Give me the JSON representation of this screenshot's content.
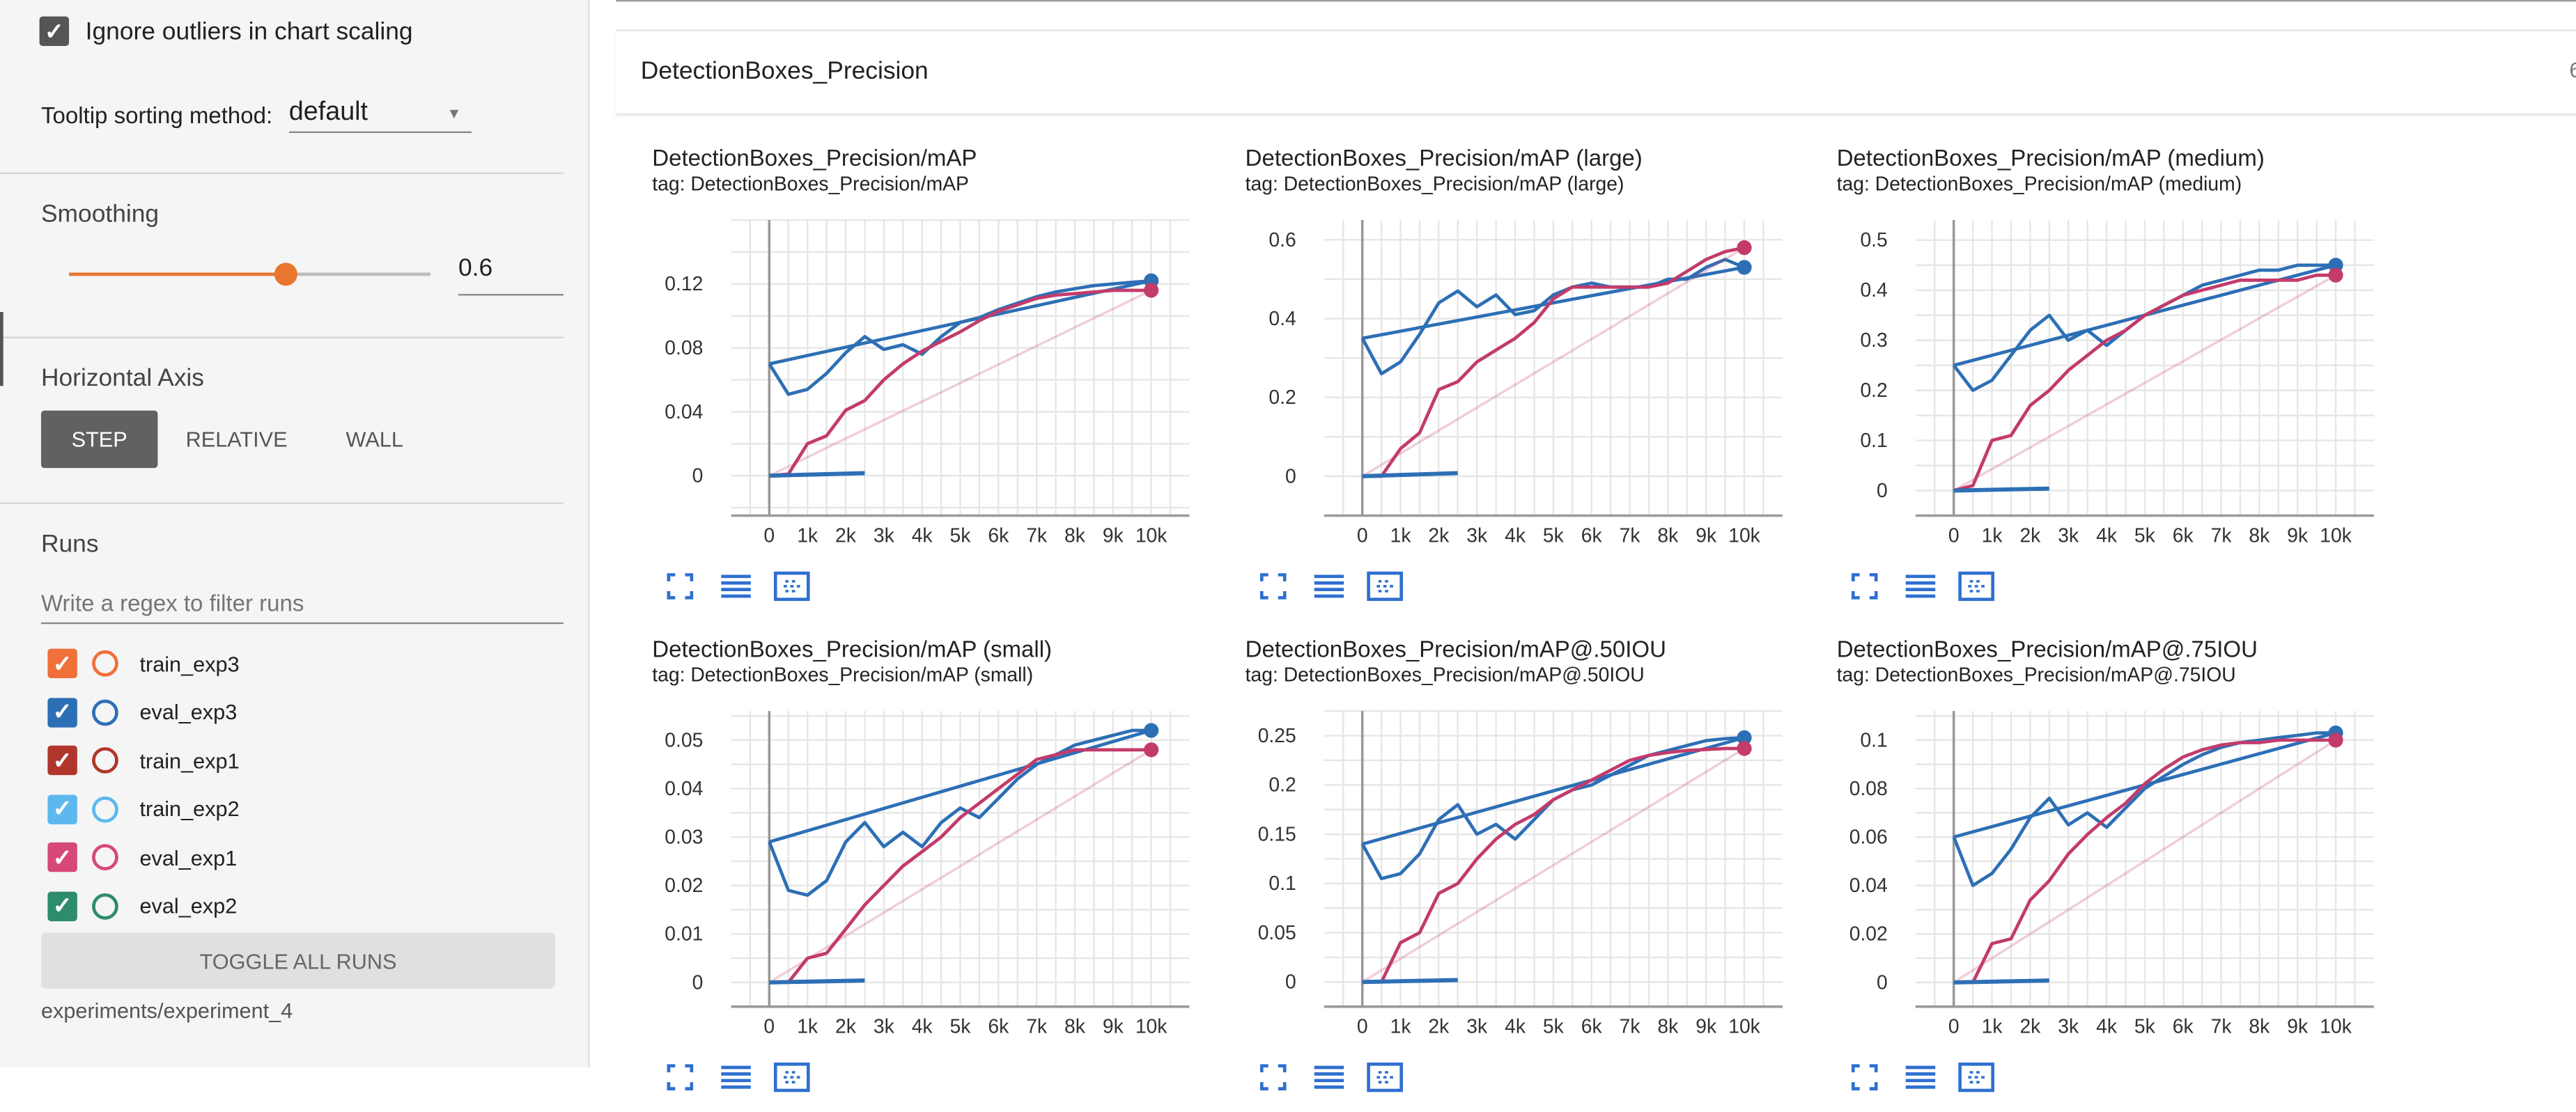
{
  "sidebar": {
    "ignore_outliers_label": "Ignore outliers in chart scaling",
    "ignore_outliers_checked": true,
    "tooltip_label": "Tooltip sorting method:",
    "tooltip_value": "default",
    "smoothing_title": "Smoothing",
    "smoothing_value": "0.6",
    "smoothing_fraction": 0.6,
    "horizontal_axis_title": "Horizontal Axis",
    "axis_options": [
      "STEP",
      "RELATIVE",
      "WALL"
    ],
    "axis_selected": "STEP",
    "runs_title": "Runs",
    "runs_filter_placeholder": "Write a regex to filter runs",
    "runs": [
      {
        "name": "train_exp3",
        "color": "#f0703a",
        "checked": true
      },
      {
        "name": "eval_exp3",
        "color": "#2d6fb5",
        "checked": true
      },
      {
        "name": "train_exp1",
        "color": "#b0362c",
        "checked": true
      },
      {
        "name": "train_exp2",
        "color": "#5db8f0",
        "checked": true
      },
      {
        "name": "eval_exp1",
        "color": "#d64878",
        "checked": true
      },
      {
        "name": "eval_exp2",
        "color": "#2c8c6c",
        "checked": true
      }
    ],
    "toggle_all_label": "TOGGLE ALL RUNS",
    "log_dir": "experiments/experiment_4"
  },
  "main": {
    "group_title": "DetectionBoxes_Precision",
    "group_count": "6"
  },
  "accent_color": "#e8762e",
  "chart_data": [
    {
      "type": "line",
      "title": "DetectionBoxes_Precision/mAP",
      "tag": "tag: DetectionBoxes_Precision/mAP",
      "x_ticks": [
        "0",
        "1k",
        "2k",
        "3k",
        "4k",
        "5k",
        "6k",
        "7k",
        "8k",
        "9k",
        "10k"
      ],
      "y_ticks": [
        "0",
        "0.04",
        "0.08",
        "0.12"
      ],
      "ylim": [
        -0.025,
        0.16
      ],
      "series": [
        {
          "name": "eval_exp3",
          "color": "#2d6fb5",
          "x": [
            0,
            500,
            1000,
            1500,
            2000,
            2500,
            3000,
            3500,
            4000,
            4500,
            5000,
            5500,
            6000,
            6500,
            7000,
            7500,
            8000,
            8500,
            9000,
            9500,
            10000
          ],
          "y": [
            0.07,
            0.051,
            0.054,
            0.064,
            0.077,
            0.087,
            0.079,
            0.082,
            0.076,
            0.087,
            0.096,
            0.099,
            0.104,
            0.108,
            0.112,
            0.115,
            0.117,
            0.119,
            0.12,
            0.121,
            0.122
          ]
        },
        {
          "name": "eval_exp1",
          "color": "#c23b6b",
          "x": [
            0,
            500,
            1000,
            1500,
            2000,
            2500,
            3000,
            3500,
            4000,
            4500,
            5000,
            5500,
            6000,
            6500,
            7000,
            7500,
            8000,
            8500,
            9000,
            9500,
            10000
          ],
          "y": [
            0.0,
            0.001,
            0.02,
            0.025,
            0.041,
            0.047,
            0.06,
            0.07,
            0.078,
            0.084,
            0.09,
            0.097,
            0.103,
            0.107,
            0.111,
            0.113,
            0.114,
            0.115,
            0.116,
            0.116,
            0.116
          ]
        }
      ]
    },
    {
      "type": "line",
      "title": "DetectionBoxes_Precision/mAP (large)",
      "tag": "tag: DetectionBoxes_Precision/mAP (large)",
      "x_ticks": [
        "0",
        "1k",
        "2k",
        "3k",
        "4k",
        "5k",
        "6k",
        "7k",
        "8k",
        "9k",
        "10k"
      ],
      "y_ticks": [
        "0",
        "0.2",
        "0.4",
        "0.6"
      ],
      "ylim": [
        -0.1,
        0.65
      ],
      "series": [
        {
          "name": "eval_exp3",
          "color": "#2d6fb5",
          "x": [
            0,
            500,
            1000,
            1500,
            2000,
            2500,
            3000,
            3500,
            4000,
            4500,
            5000,
            5500,
            6000,
            6500,
            7000,
            7500,
            8000,
            8500,
            9000,
            9500,
            10000
          ],
          "y": [
            0.35,
            0.26,
            0.29,
            0.36,
            0.44,
            0.47,
            0.43,
            0.46,
            0.41,
            0.42,
            0.46,
            0.48,
            0.49,
            0.48,
            0.48,
            0.48,
            0.5,
            0.5,
            0.53,
            0.55,
            0.53
          ]
        },
        {
          "name": "eval_exp1",
          "color": "#c23b6b",
          "x": [
            0,
            500,
            1000,
            1500,
            2000,
            2500,
            3000,
            3500,
            4000,
            4500,
            5000,
            5500,
            6000,
            6500,
            7000,
            7500,
            8000,
            8500,
            9000,
            9500,
            10000
          ],
          "y": [
            0.0,
            0.0,
            0.07,
            0.11,
            0.22,
            0.24,
            0.29,
            0.32,
            0.35,
            0.39,
            0.45,
            0.48,
            0.48,
            0.48,
            0.48,
            0.48,
            0.49,
            0.52,
            0.55,
            0.57,
            0.58
          ]
        }
      ]
    },
    {
      "type": "line",
      "title": "DetectionBoxes_Precision/mAP (medium)",
      "tag": "tag: DetectionBoxes_Precision/mAP (medium)",
      "x_ticks": [
        "0",
        "1k",
        "2k",
        "3k",
        "4k",
        "5k",
        "6k",
        "7k",
        "8k",
        "9k",
        "10k"
      ],
      "y_ticks": [
        "0",
        "0.1",
        "0.2",
        "0.3",
        "0.4",
        "0.5"
      ],
      "ylim": [
        -0.05,
        0.54
      ],
      "series": [
        {
          "name": "eval_exp3",
          "color": "#2d6fb5",
          "x": [
            0,
            500,
            1000,
            1500,
            2000,
            2500,
            3000,
            3500,
            4000,
            4500,
            5000,
            5500,
            6000,
            6500,
            7000,
            7500,
            8000,
            8500,
            9000,
            9500,
            10000
          ],
          "y": [
            0.25,
            0.2,
            0.22,
            0.27,
            0.32,
            0.35,
            0.3,
            0.32,
            0.29,
            0.32,
            0.35,
            0.37,
            0.39,
            0.41,
            0.42,
            0.43,
            0.44,
            0.44,
            0.45,
            0.45,
            0.45
          ]
        },
        {
          "name": "eval_exp1",
          "color": "#c23b6b",
          "x": [
            0,
            500,
            1000,
            1500,
            2000,
            2500,
            3000,
            3500,
            4000,
            4500,
            5000,
            5500,
            6000,
            6500,
            7000,
            7500,
            8000,
            8500,
            9000,
            9500,
            10000
          ],
          "y": [
            0.0,
            0.01,
            0.1,
            0.11,
            0.17,
            0.2,
            0.24,
            0.27,
            0.3,
            0.32,
            0.35,
            0.37,
            0.39,
            0.4,
            0.41,
            0.42,
            0.42,
            0.42,
            0.42,
            0.43,
            0.43
          ]
        }
      ]
    },
    {
      "type": "line",
      "title": "DetectionBoxes_Precision/mAP (small)",
      "tag": "tag: DetectionBoxes_Precision/mAP (small)",
      "x_ticks": [
        "0",
        "1k",
        "2k",
        "3k",
        "4k",
        "5k",
        "6k",
        "7k",
        "8k",
        "9k",
        "10k"
      ],
      "y_ticks": [
        "0",
        "0.01",
        "0.02",
        "0.03",
        "0.04",
        "0.05"
      ],
      "ylim": [
        -0.005,
        0.056
      ],
      "series": [
        {
          "name": "eval_exp3",
          "color": "#2d6fb5",
          "x": [
            0,
            500,
            1000,
            1500,
            2000,
            2500,
            3000,
            3500,
            4000,
            4500,
            5000,
            5500,
            6000,
            6500,
            7000,
            7500,
            8000,
            8500,
            9000,
            9500,
            10000
          ],
          "y": [
            0.029,
            0.019,
            0.018,
            0.021,
            0.029,
            0.033,
            0.028,
            0.031,
            0.028,
            0.033,
            0.036,
            0.034,
            0.038,
            0.042,
            0.045,
            0.047,
            0.049,
            0.05,
            0.051,
            0.052,
            0.052
          ]
        },
        {
          "name": "eval_exp1",
          "color": "#c23b6b",
          "x": [
            0,
            500,
            1000,
            1500,
            2000,
            2500,
            3000,
            3500,
            4000,
            4500,
            5000,
            5500,
            6000,
            6500,
            7000,
            7500,
            8000,
            8500,
            9000,
            9500,
            10000
          ],
          "y": [
            0.0,
            0.0,
            0.005,
            0.006,
            0.011,
            0.016,
            0.02,
            0.024,
            0.027,
            0.03,
            0.034,
            0.037,
            0.04,
            0.043,
            0.046,
            0.047,
            0.048,
            0.048,
            0.048,
            0.048,
            0.048
          ]
        }
      ]
    },
    {
      "type": "line",
      "title": "DetectionBoxes_Precision/mAP@.50IOU",
      "tag": "tag: DetectionBoxes_Precision/mAP@.50IOU",
      "x_ticks": [
        "0",
        "1k",
        "2k",
        "3k",
        "4k",
        "5k",
        "6k",
        "7k",
        "8k",
        "9k",
        "10k"
      ],
      "y_ticks": [
        "0",
        "0.05",
        "0.1",
        "0.15",
        "0.2",
        "0.25"
      ],
      "ylim": [
        -0.025,
        0.275
      ],
      "series": [
        {
          "name": "eval_exp3",
          "color": "#2d6fb5",
          "x": [
            0,
            500,
            1000,
            1500,
            2000,
            2500,
            3000,
            3500,
            4000,
            4500,
            5000,
            5500,
            6000,
            6500,
            7000,
            7500,
            8000,
            8500,
            9000,
            9500,
            10000
          ],
          "y": [
            0.14,
            0.105,
            0.11,
            0.13,
            0.165,
            0.18,
            0.15,
            0.16,
            0.145,
            0.165,
            0.185,
            0.195,
            0.2,
            0.21,
            0.22,
            0.23,
            0.235,
            0.24,
            0.245,
            0.247,
            0.248
          ]
        },
        {
          "name": "eval_exp1",
          "color": "#c23b6b",
          "x": [
            0,
            500,
            1000,
            1500,
            2000,
            2500,
            3000,
            3500,
            4000,
            4500,
            5000,
            5500,
            6000,
            6500,
            7000,
            7500,
            8000,
            8500,
            9000,
            9500,
            10000
          ],
          "y": [
            0.0,
            0.0,
            0.04,
            0.05,
            0.09,
            0.1,
            0.125,
            0.145,
            0.16,
            0.17,
            0.185,
            0.195,
            0.205,
            0.215,
            0.225,
            0.23,
            0.233,
            0.235,
            0.236,
            0.237,
            0.237
          ]
        }
      ]
    },
    {
      "type": "line",
      "title": "DetectionBoxes_Precision/mAP@.75IOU",
      "tag": "tag: DetectionBoxes_Precision/mAP@.75IOU",
      "x_ticks": [
        "0",
        "1k",
        "2k",
        "3k",
        "4k",
        "5k",
        "6k",
        "7k",
        "8k",
        "9k",
        "10k"
      ],
      "y_ticks": [
        "0",
        "0.02",
        "0.04",
        "0.06",
        "0.08",
        "0.1"
      ],
      "ylim": [
        -0.01,
        0.112
      ],
      "series": [
        {
          "name": "eval_exp3",
          "color": "#2d6fb5",
          "x": [
            0,
            500,
            1000,
            1500,
            2000,
            2500,
            3000,
            3500,
            4000,
            4500,
            5000,
            5500,
            6000,
            6500,
            7000,
            7500,
            8000,
            8500,
            9000,
            9500,
            10000
          ],
          "y": [
            0.06,
            0.04,
            0.045,
            0.055,
            0.068,
            0.076,
            0.065,
            0.07,
            0.064,
            0.072,
            0.08,
            0.085,
            0.09,
            0.094,
            0.097,
            0.099,
            0.1,
            0.101,
            0.102,
            0.103,
            0.103
          ]
        },
        {
          "name": "eval_exp1",
          "color": "#c23b6b",
          "x": [
            0,
            500,
            1000,
            1500,
            2000,
            2500,
            3000,
            3500,
            4000,
            4500,
            5000,
            5500,
            6000,
            6500,
            7000,
            7500,
            8000,
            8500,
            9000,
            9500,
            10000
          ],
          "y": [
            0.0,
            0.0,
            0.016,
            0.018,
            0.034,
            0.042,
            0.053,
            0.061,
            0.068,
            0.074,
            0.082,
            0.088,
            0.093,
            0.096,
            0.098,
            0.099,
            0.099,
            0.1,
            0.1,
            0.1,
            0.1
          ]
        }
      ]
    }
  ]
}
